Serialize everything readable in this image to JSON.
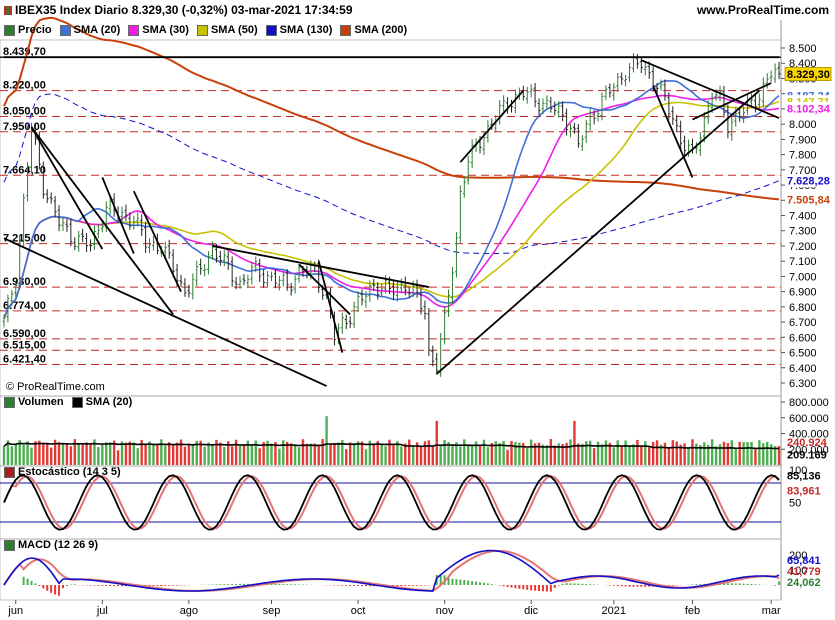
{
  "header": {
    "title": "IBEX35 Index Diario 8.329,30 (-0,32%) 03-mar-2021 17:34:59",
    "site": "www.ProRealTime.com",
    "copyright": "© ProRealTime.com"
  },
  "legends": {
    "price": [
      {
        "label": "Precio",
        "color": "#2e7d32"
      },
      {
        "label": "SMA (20)",
        "color": "#3f6fd8"
      },
      {
        "label": "SMA (30)",
        "color": "#ee1ee8"
      },
      {
        "label": "SMA (50)",
        "color": "#c9c200"
      },
      {
        "label": "SMA (130)",
        "color": "#1010c8"
      },
      {
        "label": "SMA (200)",
        "color": "#c8400a"
      }
    ],
    "volume": [
      {
        "label": "Volumen",
        "color": "#2e7d32"
      },
      {
        "label": "SMA (20)",
        "color": "#000000"
      }
    ],
    "stochastic": [
      {
        "label": "Estocástico (14 3 5)",
        "color": "#9e2020"
      }
    ],
    "macd": [
      {
        "label": "MACD (12 26 9)",
        "color": "#2e7d32"
      }
    ]
  },
  "chart_data": {
    "type": "line",
    "x_tick_labels": [
      "jun",
      "jul",
      "ago",
      "sep",
      "oct",
      "nov",
      "dic",
      "2021",
      "feb",
      "mar"
    ],
    "x_ticks": [
      {
        "label": "jun",
        "index": 3
      },
      {
        "label": "jul",
        "index": 25
      },
      {
        "label": "ago",
        "index": 47
      },
      {
        "label": "sep",
        "index": 68
      },
      {
        "label": "oct",
        "index": 90
      },
      {
        "label": "nov",
        "index": 112
      },
      {
        "label": "dic",
        "index": 134
      },
      {
        "label": "2021",
        "index": 155
      },
      {
        "label": "feb",
        "index": 175
      },
      {
        "label": "mar",
        "index": 195
      }
    ],
    "price_axis": {
      "min": 6300,
      "max": 8500,
      "ticks": [
        "8.500",
        "8.400",
        "8.300",
        "8.200",
        "8.100",
        "8.000",
        "7.900",
        "7.800",
        "7.700",
        "7.600",
        "7.500",
        "7.400",
        "7.300",
        "7.200",
        "7.100",
        "7.000",
        "6.900",
        "6.800",
        "6.700",
        "6.600",
        "6.500",
        "6.400",
        "6.300"
      ]
    },
    "horizontal_levels": [
      {
        "label": "8.439,70",
        "value": 8439.7,
        "style": "solid"
      },
      {
        "label": "8.220,00",
        "value": 8220,
        "style": "dashed"
      },
      {
        "label": "8.050,00",
        "value": 8050,
        "style": "dashed"
      },
      {
        "label": "7.950,00",
        "value": 7950,
        "style": "dashed"
      },
      {
        "label": "7.664,10",
        "value": 7664.1,
        "style": "dashed"
      },
      {
        "label": "7.215,00",
        "value": 7215,
        "style": "dashed"
      },
      {
        "label": "6.930,00",
        "value": 6930,
        "style": "dashed"
      },
      {
        "label": "6.774,00",
        "value": 6774,
        "style": "dashed"
      },
      {
        "label": "6.590,00",
        "value": 6590,
        "style": "dashed"
      },
      {
        "label": "6.515,00",
        "value": 6515,
        "style": "dashed"
      },
      {
        "label": "6.421,40",
        "value": 6421.4,
        "style": "dashed"
      }
    ],
    "last_values": [
      {
        "label": "8.329,30",
        "value": 8329.3,
        "bg": "#ffd700",
        "fg": "#000000"
      },
      {
        "label": "8.187,24",
        "value": 8187.24,
        "bg": "#ffffff",
        "fg": "#3f6fd8"
      },
      {
        "label": "8.147,71",
        "value": 8147.71,
        "bg": "#ffffff",
        "fg": "#c9c200"
      },
      {
        "label": "8.102,34",
        "value": 8102.34,
        "bg": "#ffffff",
        "fg": "#ee1ee8"
      },
      {
        "label": "7.628,28",
        "value": 7628.28,
        "bg": "#ffffff",
        "fg": "#1010c8"
      },
      {
        "label": "7.505,84",
        "value": 7505.84,
        "bg": "#ffffff",
        "fg": "#c8400a"
      }
    ],
    "price_anchors": [
      [
        0,
        6700
      ],
      [
        3,
        7000
      ],
      [
        7,
        7980
      ],
      [
        10,
        7600
      ],
      [
        14,
        7350
      ],
      [
        18,
        7250
      ],
      [
        22,
        7200
      ],
      [
        26,
        7450
      ],
      [
        30,
        7400
      ],
      [
        33,
        7380
      ],
      [
        36,
        7220
      ],
      [
        40,
        7200
      ],
      [
        43,
        7050
      ],
      [
        46,
        6900
      ],
      [
        49,
        7000
      ],
      [
        53,
        7180
      ],
      [
        57,
        7050
      ],
      [
        60,
        6950
      ],
      [
        64,
        7050
      ],
      [
        68,
        6980
      ],
      [
        72,
        6950
      ],
      [
        75,
        7020
      ],
      [
        79,
        7050
      ],
      [
        82,
        6850
      ],
      [
        84,
        6600
      ],
      [
        86,
        6700
      ],
      [
        88,
        6750
      ],
      [
        91,
        6850
      ],
      [
        94,
        6950
      ],
      [
        98,
        6900
      ],
      [
        102,
        6950
      ],
      [
        105,
        6850
      ],
      [
        107,
        6780
      ],
      [
        108,
        6500
      ],
      [
        110,
        6420
      ],
      [
        112,
        6700
      ],
      [
        115,
        7250
      ],
      [
        116,
        7550
      ],
      [
        118,
        7750
      ],
      [
        121,
        7900
      ],
      [
        124,
        8000
      ],
      [
        128,
        8150
      ],
      [
        132,
        8200
      ],
      [
        135,
        8170
      ],
      [
        138,
        8120
      ],
      [
        141,
        8080
      ],
      [
        144,
        8000
      ],
      [
        146,
        7850
      ],
      [
        149,
        8050
      ],
      [
        152,
        8150
      ],
      [
        155,
        8250
      ],
      [
        158,
        8350
      ],
      [
        162,
        8400
      ],
      [
        165,
        8300
      ],
      [
        168,
        8150
      ],
      [
        170,
        8050
      ],
      [
        172,
        7900
      ],
      [
        175,
        7780
      ],
      [
        177,
        7950
      ],
      [
        180,
        8200
      ],
      [
        182,
        8150
      ],
      [
        184,
        8000
      ],
      [
        186,
        8050
      ],
      [
        189,
        8100
      ],
      [
        192,
        8200
      ],
      [
        195,
        8330
      ],
      [
        197,
        8329.3
      ]
    ],
    "sma_last": {
      "sma20": 8187.24,
      "sma30": 8102.34,
      "sma50": 8147.71,
      "sma130": 7628.28,
      "sma200": 7505.84
    },
    "volume_axis": {
      "min": 0,
      "max": 800000,
      "ticks": [
        "800.000",
        "600.000",
        "400.000",
        "200.000"
      ]
    },
    "volume_last": [
      {
        "label": "240.924",
        "value": 240924,
        "bg": "#ffffff",
        "fg": "#c62828"
      },
      {
        "label": "209.169",
        "value": 209169,
        "bg": "#ffffff",
        "fg": "#000000"
      }
    ],
    "stochastic_axis": {
      "ticks": [
        "100",
        "50"
      ],
      "levels": [
        80,
        20
      ]
    },
    "stochastic_last": [
      {
        "label": "85,136",
        "value": 85.136,
        "fg": "#000000"
      },
      {
        "label": "83,961",
        "value": 83.961,
        "fg": "#c62828"
      }
    ],
    "macd_axis": {
      "ticks": [
        "200",
        "100"
      ]
    },
    "macd_last": [
      {
        "label": "65,841",
        "value": 65.841,
        "fg": "#1010c8"
      },
      {
        "label": "41,779",
        "value": 41.779,
        "fg": "#c62828"
      },
      {
        "label": "24,062",
        "value": 24.062,
        "fg": "#2e7d32"
      }
    ]
  }
}
